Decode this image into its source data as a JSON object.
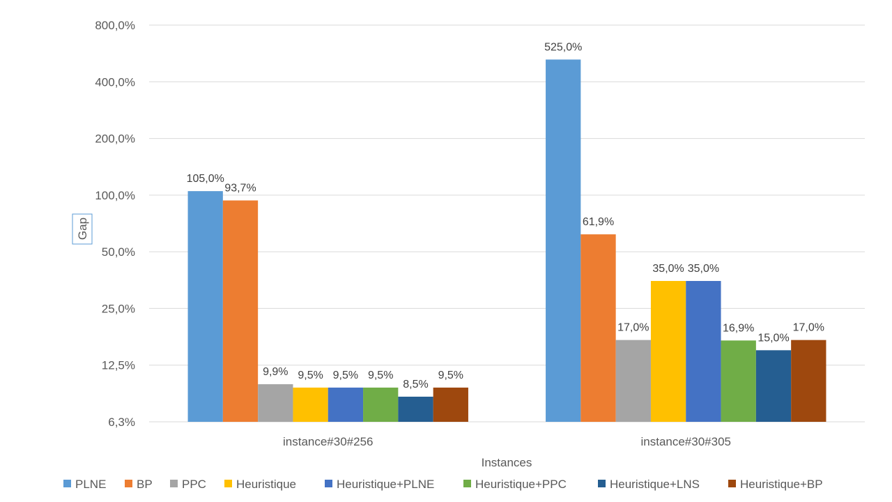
{
  "chart_data": {
    "type": "bar",
    "scale": "log2",
    "ylabel": "Gap",
    "xlabel": "Instances",
    "ylim": [
      6.25,
      800
    ],
    "yticks": [
      6.25,
      12.5,
      25,
      50,
      100,
      200,
      400,
      800
    ],
    "ytick_labels": [
      "6,3%",
      "12,5%",
      "25,0%",
      "50,0%",
      "100,0%",
      "200,0%",
      "400,0%",
      "800,0%"
    ],
    "grid": true,
    "legend_position": "bottom",
    "categories": [
      "instance#30#256",
      "instance#30#305"
    ],
    "series": [
      {
        "name": "PLNE",
        "color": "#5B9BD5",
        "values": [
          105.0,
          525.0
        ],
        "labels": [
          "105,0%",
          "525,0%"
        ]
      },
      {
        "name": "BP",
        "color": "#ED7D31",
        "values": [
          93.7,
          61.9
        ],
        "labels": [
          "93,7%",
          "61,9%"
        ]
      },
      {
        "name": "PPC",
        "color": "#A5A5A5",
        "values": [
          9.9,
          17.0
        ],
        "labels": [
          "9,9%",
          "17,0%"
        ]
      },
      {
        "name": "Heuristique",
        "color": "#FFC000",
        "values": [
          9.5,
          35.0
        ],
        "labels": [
          "9,5%",
          "35,0%"
        ]
      },
      {
        "name": "Heuristique+PLNE",
        "color": "#4472C4",
        "values": [
          9.5,
          35.0
        ],
        "labels": [
          "9,5%",
          "35,0%"
        ]
      },
      {
        "name": "Heuristique+PPC",
        "color": "#70AD47",
        "values": [
          9.5,
          16.9
        ],
        "labels": [
          "9,5%",
          "16,9%"
        ]
      },
      {
        "name": "Heuristique+LNS",
        "color": "#255E91",
        "values": [
          8.5,
          15.0
        ],
        "labels": [
          "8,5%",
          "15,0%"
        ]
      },
      {
        "name": "Heuristique+BP",
        "color": "#9E480E",
        "values": [
          9.5,
          17.0
        ],
        "labels": [
          "9,5%",
          "17,0%"
        ]
      }
    ]
  }
}
